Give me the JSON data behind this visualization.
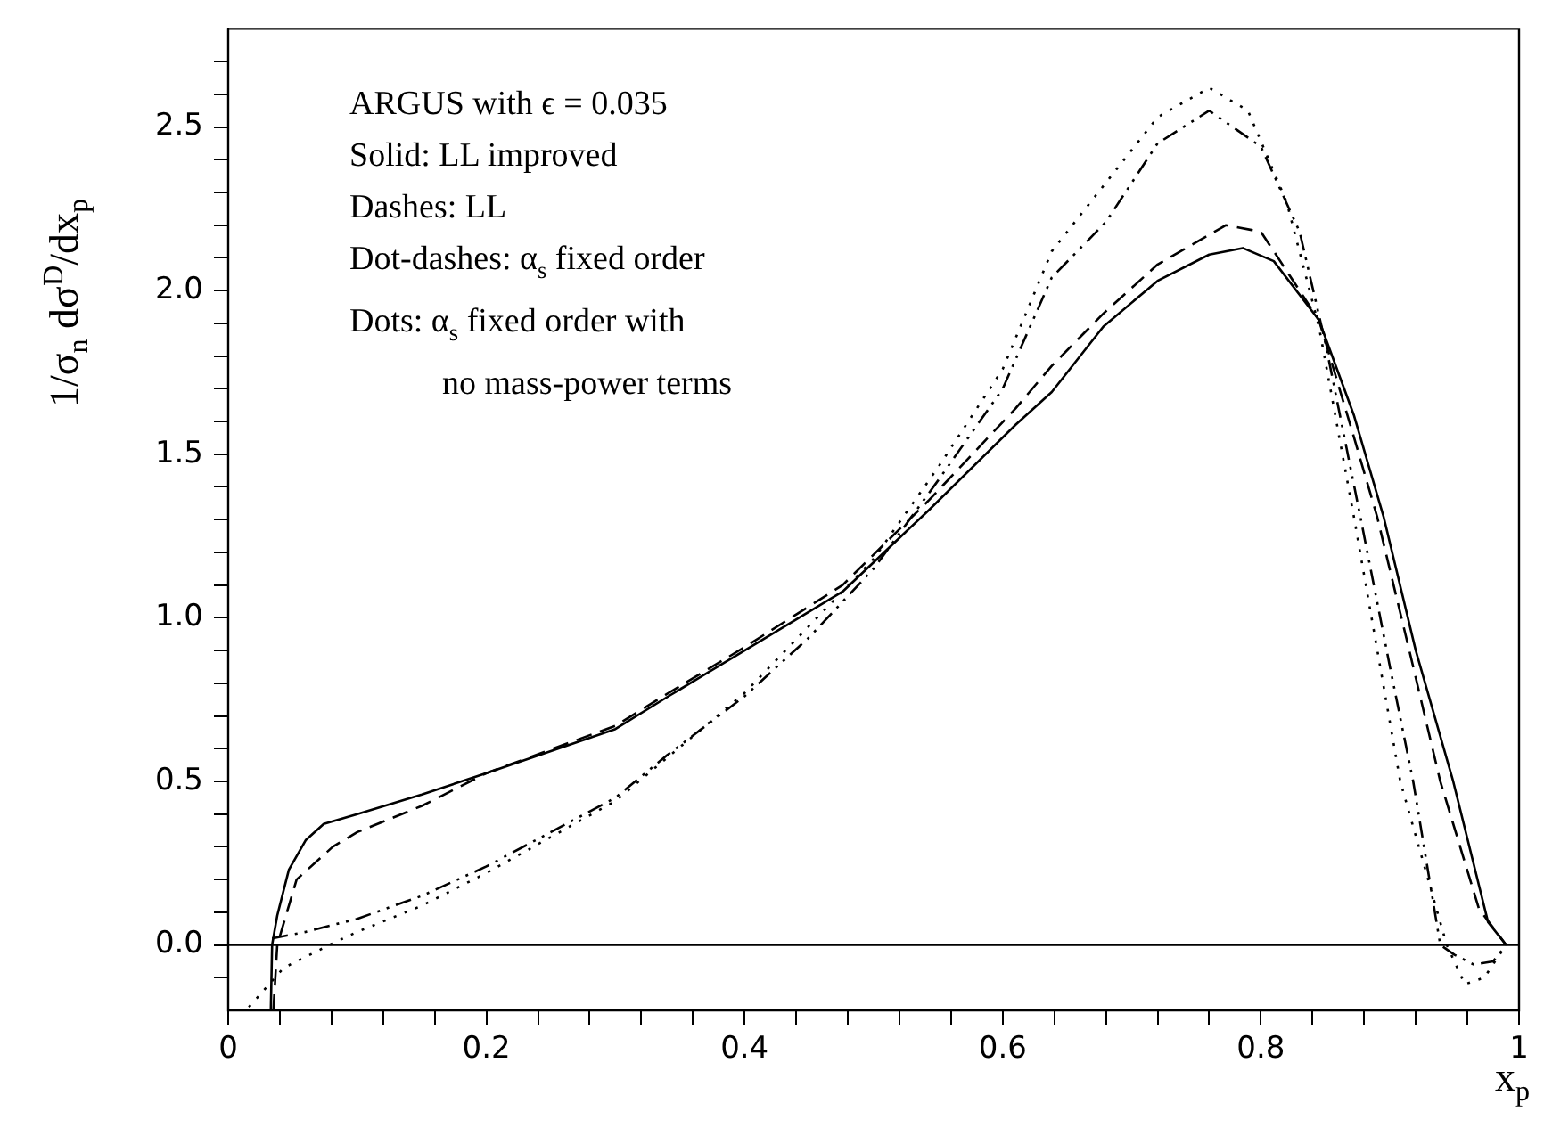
{
  "chart_data": {
    "type": "line",
    "xlabel": "x$_{p}$",
    "ylabel": "1/σ$_{n}$ dσ$^{D}$/dx$_{p}$",
    "annotations": [
      "ARGUS with ϵ = 0.035",
      "Solid: LL improved",
      "Dashes: LL",
      "Dot-dashes: α$_{s}$ fixed order",
      "Dots: α$_{s}$ fixed order with",
      "no mass-power terms"
    ],
    "xlim": [
      0,
      1
    ],
    "ylim": [
      -0.2,
      2.8
    ],
    "xticks": [
      0,
      {
        "value": 0.04,
        "label": null
      },
      {
        "value": 0.08,
        "label": null
      },
      {
        "value": 0.12,
        "label": null
      },
      {
        "value": 0.16,
        "label": null
      },
      0.2,
      {
        "value": 0.24,
        "label": null
      },
      {
        "value": 0.28,
        "label": null
      },
      {
        "value": 0.32,
        "label": null
      },
      {
        "value": 0.36,
        "label": null
      },
      0.4,
      {
        "value": 0.44,
        "label": null
      },
      {
        "value": 0.48,
        "label": null
      },
      {
        "value": 0.52,
        "label": null
      },
      {
        "value": 0.56,
        "label": null
      },
      0.6,
      {
        "value": 0.64,
        "label": null
      },
      {
        "value": 0.68,
        "label": null
      },
      {
        "value": 0.72,
        "label": null
      },
      {
        "value": 0.76,
        "label": null
      },
      0.8,
      {
        "value": 0.84,
        "label": null
      },
      {
        "value": 0.88,
        "label": null
      },
      {
        "value": 0.92,
        "label": null
      },
      {
        "value": 0.96,
        "label": null
      },
      1
    ],
    "yticks": [
      {
        "value": -0.1,
        "label": null
      },
      {
        "value": 0,
        "label": "0.0"
      },
      {
        "value": 0.1,
        "label": null
      },
      {
        "value": 0.2,
        "label": null
      },
      {
        "value": 0.3,
        "label": null
      },
      {
        "value": 0.4,
        "label": null
      },
      0.5,
      {
        "value": 0.6,
        "label": null
      },
      {
        "value": 0.7,
        "label": null
      },
      {
        "value": 0.8,
        "label": null
      },
      {
        "value": 0.9,
        "label": null
      },
      {
        "value": 1,
        "label": "1.0"
      },
      {
        "value": 1.1,
        "label": null
      },
      {
        "value": 1.2,
        "label": null
      },
      {
        "value": 1.3,
        "label": null
      },
      {
        "value": 1.4,
        "label": null
      },
      1.5,
      {
        "value": 1.6,
        "label": null
      },
      {
        "value": 1.7,
        "label": null
      },
      {
        "value": 1.8,
        "label": null
      },
      {
        "value": 1.9,
        "label": null
      },
      {
        "value": 2,
        "label": "2.0"
      },
      {
        "value": 2.1,
        "label": null
      },
      {
        "value": 2.2,
        "label": null
      },
      {
        "value": 2.3,
        "label": null
      },
      {
        "value": 2.4,
        "label": null
      },
      2.5,
      {
        "value": 2.6,
        "label": null
      },
      {
        "value": 2.7,
        "label": null
      }
    ],
    "grid": false,
    "legend": false,
    "marker": "none",
    "ref_lines": [
      {
        "axis": "y",
        "value": 0,
        "color": "#000000"
      }
    ],
    "series": [
      {
        "color": "#000000",
        "line_style": "solid",
        "x": [
          0.033,
          0.034,
          0.038,
          0.047,
          0.06,
          0.074,
          0.1,
          0.15,
          0.2,
          0.3,
          0.341,
          0.4,
          0.476,
          0.543,
          0.61,
          0.638,
          0.678,
          0.72,
          0.76,
          0.786,
          0.81,
          0.845,
          0.872,
          0.895,
          0.92,
          0.949,
          0.976,
          0.99
        ],
        "values": [
          -0.2,
          0,
          0.09,
          0.23,
          0.32,
          0.37,
          0.4,
          0.46,
          0.525,
          0.66,
          0.76,
          0.9,
          1.08,
          1.33,
          1.59,
          1.69,
          1.89,
          2.03,
          2.11,
          2.13,
          2.09,
          1.91,
          1.62,
          1.31,
          0.9,
          0.5,
          0.07,
          0
        ]
      },
      {
        "color": "#000000",
        "line_style": "dashed",
        "x": [
          0.035,
          0.038,
          0.053,
          0.081,
          0.1,
          0.15,
          0.2,
          0.3,
          0.341,
          0.4,
          0.476,
          0.543,
          0.61,
          0.638,
          0.678,
          0.72,
          0.773,
          0.8,
          0.845,
          0.87,
          0.89,
          0.915,
          0.939,
          0.969,
          0.99
        ],
        "values": [
          -0.2,
          0,
          0.2,
          0.3,
          0.345,
          0.425,
          0.525,
          0.67,
          0.77,
          0.91,
          1.1,
          1.36,
          1.64,
          1.77,
          1.93,
          2.08,
          2.2,
          2.18,
          1.91,
          1.58,
          1.31,
          0.9,
          0.5,
          0.11,
          0
        ]
      },
      {
        "color": "#000000",
        "line_style": "dashdot",
        "x": [
          0.034,
          0.06,
          0.1,
          0.15,
          0.2,
          0.3,
          0.34,
          0.4,
          0.45,
          0.5,
          0.55,
          0.6,
          0.638,
          0.68,
          0.72,
          0.76,
          0.8,
          0.83,
          0.85,
          0.877,
          0.9,
          0.918,
          0.939,
          0.95,
          0.965,
          0.98,
          0.99
        ],
        "values": [
          0.02,
          0.04,
          0.08,
          0.15,
          0.24,
          0.45,
          0.58,
          0.76,
          0.94,
          1.15,
          1.42,
          1.7,
          2.04,
          2.21,
          2.45,
          2.55,
          2.44,
          2.18,
          1.84,
          1.31,
          0.85,
          0.5,
          0,
          -0.03,
          -0.06,
          -0.05,
          0
        ]
      },
      {
        "color": "#000000",
        "line_style": "dotted",
        "x": [
          0.016,
          0.043,
          0.081,
          0.1,
          0.15,
          0.2,
          0.3,
          0.4,
          0.5,
          0.55,
          0.6,
          0.638,
          0.68,
          0.72,
          0.76,
          0.79,
          0.82,
          0.845,
          0.872,
          0.908,
          0.944,
          0.958,
          0.973,
          0.99
        ],
        "values": [
          -0.19,
          -0.07,
          0.005,
          0.04,
          0.12,
          0.22,
          0.44,
          0.77,
          1.18,
          1.46,
          1.76,
          2.12,
          2.33,
          2.53,
          2.62,
          2.55,
          2.27,
          1.89,
          1.31,
          0.5,
          0,
          -0.12,
          -0.1,
          0
        ]
      }
    ]
  }
}
